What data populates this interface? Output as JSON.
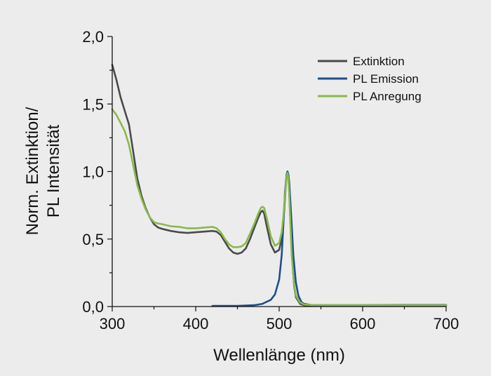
{
  "chart_data": {
    "type": "line",
    "xlabel": "Wellenlänge (nm)",
    "ylabel_lines": [
      "Norm. Extinktion/",
      "PL Intensität"
    ],
    "xlim": [
      300,
      700
    ],
    "ylim": [
      0.0,
      2.0
    ],
    "x_ticks": [
      300,
      400,
      500,
      600,
      700
    ],
    "x_tick_labels": [
      "300",
      "400",
      "500",
      "600",
      "700"
    ],
    "y_ticks": [
      0.0,
      0.5,
      1.0,
      1.5,
      2.0
    ],
    "y_tick_labels": [
      "0,0",
      "0,5",
      "1,0",
      "1,5",
      "2,0"
    ],
    "grid": false,
    "legend_position": "top-right",
    "series": [
      {
        "name": "Extinktion",
        "color": "#4a4a4a",
        "x": [
          300,
          305,
          310,
          315,
          320,
          325,
          330,
          335,
          340,
          345,
          350,
          355,
          360,
          370,
          380,
          390,
          400,
          410,
          420,
          425,
          430,
          435,
          440,
          445,
          450,
          455,
          460,
          465,
          470,
          475,
          478,
          480,
          482,
          485,
          490,
          495,
          500,
          503,
          505,
          507,
          508,
          509,
          510,
          511,
          512,
          513,
          515,
          518,
          520,
          525,
          530,
          540,
          550,
          600,
          650,
          700
        ],
        "y": [
          1.79,
          1.68,
          1.55,
          1.45,
          1.35,
          1.15,
          0.95,
          0.82,
          0.73,
          0.66,
          0.61,
          0.585,
          0.575,
          0.56,
          0.55,
          0.545,
          0.55,
          0.555,
          0.56,
          0.555,
          0.53,
          0.48,
          0.43,
          0.4,
          0.39,
          0.4,
          0.43,
          0.5,
          0.58,
          0.66,
          0.7,
          0.71,
          0.69,
          0.6,
          0.46,
          0.4,
          0.42,
          0.5,
          0.62,
          0.8,
          0.9,
          0.97,
          1.0,
          0.97,
          0.86,
          0.7,
          0.4,
          0.15,
          0.07,
          0.02,
          0.01,
          0.005,
          0.005,
          0.005,
          0.005,
          0.005
        ]
      },
      {
        "name": "PL Emission",
        "color": "#1f4e8c",
        "x": [
          420,
          450,
          470,
          480,
          490,
          495,
          500,
          503,
          505,
          507,
          509,
          510,
          511,
          512,
          513,
          515,
          517,
          520,
          523,
          527,
          530,
          540,
          550,
          600,
          650,
          700
        ],
        "y": [
          0.005,
          0.005,
          0.01,
          0.02,
          0.05,
          0.09,
          0.2,
          0.38,
          0.6,
          0.85,
          0.98,
          1.0,
          0.98,
          0.92,
          0.82,
          0.6,
          0.38,
          0.18,
          0.08,
          0.03,
          0.02,
          0.01,
          0.01,
          0.01,
          0.012,
          0.012
        ]
      },
      {
        "name": "PL Anregung",
        "color": "#8ab84c",
        "x": [
          300,
          305,
          310,
          315,
          320,
          325,
          330,
          335,
          340,
          345,
          350,
          355,
          360,
          370,
          380,
          390,
          400,
          410,
          420,
          425,
          430,
          435,
          440,
          445,
          450,
          455,
          460,
          465,
          470,
          475,
          478,
          480,
          482,
          485,
          490,
          495,
          500,
          503,
          505,
          507,
          508,
          509,
          510,
          511,
          512,
          513,
          515,
          518,
          520,
          525,
          530,
          540,
          550,
          600,
          650,
          700
        ],
        "y": [
          1.46,
          1.42,
          1.36,
          1.3,
          1.2,
          1.05,
          0.9,
          0.8,
          0.72,
          0.66,
          0.625,
          0.615,
          0.61,
          0.595,
          0.59,
          0.58,
          0.58,
          0.585,
          0.59,
          0.58,
          0.55,
          0.5,
          0.46,
          0.44,
          0.44,
          0.445,
          0.47,
          0.54,
          0.61,
          0.69,
          0.73,
          0.74,
          0.73,
          0.66,
          0.52,
          0.45,
          0.47,
          0.55,
          0.66,
          0.82,
          0.9,
          0.96,
          0.99,
          0.95,
          0.84,
          0.68,
          0.38,
          0.16,
          0.08,
          0.03,
          0.015,
          0.01,
          0.01,
          0.01,
          0.01,
          0.01
        ]
      }
    ]
  }
}
